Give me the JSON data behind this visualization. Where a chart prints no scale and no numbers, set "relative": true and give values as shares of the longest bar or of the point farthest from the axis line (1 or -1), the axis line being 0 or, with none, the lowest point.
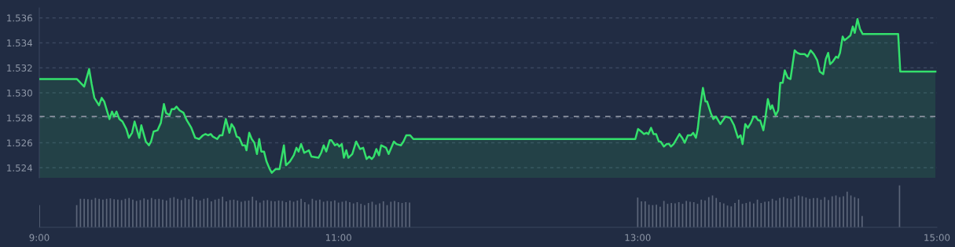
{
  "chart_data": [
    {
      "type": "area",
      "xlim": [
        9,
        15
      ],
      "ylim": [
        1.5232,
        1.5368
      ],
      "yticks": [
        1.524,
        1.526,
        1.528,
        {
          "value": 1.53,
          "label": "1.530"
        },
        1.532,
        1.534,
        1.536
      ],
      "grid": "y",
      "tick_labels": "y",
      "ref_lines": [
        {
          "axis": "y",
          "value": 1.5281,
          "color": "#8a909e",
          "line_style": "dashed"
        }
      ],
      "series": [
        {
          "color": "#34e06c",
          "x": [
            9.0,
            9.252,
            9.3,
            9.333,
            9.35,
            9.368,
            9.399,
            9.417,
            9.434,
            9.469,
            9.486,
            9.5,
            9.516,
            9.535,
            9.556,
            9.582,
            9.599,
            9.62,
            9.637,
            9.668,
            9.682,
            9.712,
            9.733,
            9.747,
            9.764,
            9.79,
            9.8125,
            9.833,
            9.847,
            9.871,
            9.885,
            9.903,
            9.917,
            9.9375,
            9.964,
            9.986,
            10.016,
            10.042,
            10.068,
            10.094,
            10.111,
            10.128,
            10.146,
            10.16,
            10.189,
            10.207,
            10.224,
            10.247,
            10.271,
            10.285,
            10.302,
            10.3194,
            10.337,
            10.358,
            10.375,
            10.385,
            10.403,
            10.42,
            10.4375,
            10.455,
            10.47,
            10.484,
            10.502,
            10.519,
            10.54,
            10.554,
            10.58,
            10.606,
            10.635,
            10.649,
            10.675,
            10.701,
            10.7188,
            10.733,
            10.75,
            10.771,
            10.802,
            10.819,
            10.866,
            10.884,
            10.901,
            10.918,
            10.941,
            10.953,
            10.976,
            10.993,
            11.005,
            11.022,
            11.036,
            11.052,
            11.066,
            11.092,
            11.118,
            11.144,
            11.165,
            11.1875,
            11.205,
            11.222,
            11.236,
            11.253,
            11.271,
            11.285,
            11.318,
            11.335,
            11.37,
            11.387,
            11.417,
            11.434,
            11.453,
            11.479,
            11.5,
            12.984,
            13.002,
            13.024,
            13.042,
            13.059,
            13.071,
            13.089,
            13.106,
            13.123,
            13.141,
            13.153,
            13.175,
            13.193,
            13.21,
            13.222,
            13.24,
            13.279,
            13.297,
            13.314,
            13.335,
            13.356,
            13.371,
            13.389,
            13.401,
            13.418,
            13.436,
            13.453,
            13.464,
            13.488,
            13.505,
            13.523,
            13.552,
            13.587,
            13.618,
            13.644,
            13.67,
            13.688,
            13.701,
            13.719,
            13.736,
            13.757,
            13.774,
            13.788,
            13.806,
            13.818,
            13.84,
            13.852,
            13.87,
            13.887,
            13.899,
            13.922,
            13.939,
            13.953,
            13.969,
            13.983,
            14.003,
            14.021,
            14.049,
            14.066,
            14.087,
            14.116,
            14.135,
            14.156,
            14.177,
            14.2,
            14.217,
            14.24,
            14.257,
            14.273,
            14.286,
            14.304,
            14.326,
            14.339,
            14.352,
            14.37,
            14.382,
            14.403,
            14.422,
            14.4375,
            14.451,
            14.469,
            14.486,
            14.504,
            14.741,
            14.755,
            14.99
          ],
          "values": [
            1.5311,
            1.5311,
            1.5305,
            1.5319,
            1.5307,
            1.5296,
            1.529,
            1.5296,
            1.5293,
            1.5279,
            1.5285,
            1.5281,
            1.5285,
            1.5279,
            1.5277,
            1.5271,
            1.5264,
            1.5268,
            1.5277,
            1.5264,
            1.5274,
            1.5261,
            1.5258,
            1.5261,
            1.5269,
            1.527,
            1.5276,
            1.5291,
            1.5284,
            1.5282,
            1.5287,
            1.5287,
            1.5289,
            1.5286,
            1.5284,
            1.5278,
            1.5272,
            1.5264,
            1.5263,
            1.5266,
            1.5267,
            1.5266,
            1.5267,
            1.5265,
            1.5263,
            1.5266,
            1.5266,
            1.5279,
            1.5268,
            1.5275,
            1.5272,
            1.5265,
            1.5264,
            1.5258,
            1.5258,
            1.5254,
            1.5268,
            1.5263,
            1.526,
            1.5251,
            1.5263,
            1.5253,
            1.5253,
            1.5245,
            1.5239,
            1.5236,
            1.5239,
            1.5239,
            1.5258,
            1.5242,
            1.5245,
            1.525,
            1.5256,
            1.5253,
            1.5259,
            1.5252,
            1.5254,
            1.5249,
            1.5248,
            1.5252,
            1.5258,
            1.5253,
            1.5262,
            1.5262,
            1.5258,
            1.5259,
            1.5257,
            1.5259,
            1.5248,
            1.5254,
            1.5248,
            1.5251,
            1.5261,
            1.5255,
            1.5256,
            1.5247,
            1.5249,
            1.5247,
            1.5249,
            1.5255,
            1.525,
            1.5258,
            1.5256,
            1.5251,
            1.5261,
            1.5259,
            1.5258,
            1.5261,
            1.5266,
            1.5266,
            1.5263,
            1.5263,
            1.5271,
            1.5269,
            1.5267,
            1.5268,
            1.5267,
            1.5272,
            1.5267,
            1.5267,
            1.5261,
            1.5261,
            1.5257,
            1.5259,
            1.5259,
            1.5257,
            1.5259,
            1.5267,
            1.5264,
            1.526,
            1.5266,
            1.5266,
            1.5268,
            1.5264,
            1.5271,
            1.5289,
            1.5304,
            1.5293,
            1.5293,
            1.5284,
            1.5279,
            1.5281,
            1.5275,
            1.5281,
            1.528,
            1.5274,
            1.5264,
            1.5266,
            1.5259,
            1.5275,
            1.5272,
            1.5276,
            1.5281,
            1.5281,
            1.5278,
            1.5278,
            1.527,
            1.5279,
            1.5295,
            1.5287,
            1.529,
            1.5282,
            1.5286,
            1.5308,
            1.5308,
            1.5318,
            1.5312,
            1.5311,
            1.5334,
            1.5332,
            1.5331,
            1.5331,
            1.5329,
            1.5334,
            1.5331,
            1.5326,
            1.5317,
            1.5315,
            1.5327,
            1.5332,
            1.5323,
            1.5325,
            1.5329,
            1.5328,
            1.5332,
            1.5345,
            1.5342,
            1.5344,
            1.5346,
            1.5353,
            1.5348,
            1.5359,
            1.5351,
            1.5347,
            1.5347,
            1.5317,
            1.5317
          ]
        }
      ]
    },
    {
      "type": "bar",
      "relative": true,
      "xlim": [
        9,
        15
      ],
      "tick_labels": "x",
      "color": "#5b6579",
      "xticks": [
        {
          "value": 9,
          "label": "9:00"
        },
        {
          "value": 11,
          "label": "11:00"
        },
        {
          "value": 13,
          "label": "13:00"
        },
        {
          "value": 15,
          "label": "15:00"
        }
      ],
      "x": [
        9.0,
        9.25,
        9.275,
        9.3,
        9.325,
        9.35,
        9.375,
        9.4,
        9.425,
        9.45,
        9.475,
        9.5,
        9.525,
        9.55,
        9.575,
        9.6,
        9.625,
        9.65,
        9.675,
        9.7,
        9.725,
        9.75,
        9.775,
        9.8,
        9.825,
        9.85,
        9.875,
        9.9,
        9.925,
        9.95,
        9.975,
        10.0,
        10.025,
        10.05,
        10.075,
        10.1,
        10.125,
        10.15,
        10.175,
        10.2,
        10.225,
        10.25,
        10.275,
        10.3,
        10.325,
        10.35,
        10.375,
        10.4,
        10.425,
        10.45,
        10.475,
        10.5,
        10.525,
        10.55,
        10.575,
        10.6,
        10.625,
        10.65,
        10.675,
        10.7,
        10.725,
        10.75,
        10.775,
        10.8,
        10.825,
        10.85,
        10.875,
        10.9,
        10.925,
        10.95,
        10.975,
        11.0,
        11.025,
        11.05,
        11.075,
        11.1,
        11.125,
        11.15,
        11.175,
        11.2,
        11.225,
        11.25,
        11.275,
        11.3,
        11.325,
        11.35,
        11.375,
        11.4,
        11.425,
        11.45,
        11.475,
        13.0,
        13.025,
        13.05,
        13.075,
        13.1,
        13.125,
        13.15,
        13.175,
        13.2,
        13.225,
        13.25,
        13.275,
        13.3,
        13.325,
        13.35,
        13.375,
        13.4,
        13.425,
        13.45,
        13.475,
        13.5,
        13.525,
        13.55,
        13.575,
        13.6,
        13.625,
        13.65,
        13.675,
        13.7,
        13.725,
        13.75,
        13.775,
        13.8,
        13.825,
        13.85,
        13.875,
        13.9,
        13.925,
        13.95,
        13.975,
        14.0,
        14.025,
        14.05,
        14.075,
        14.1,
        14.125,
        14.15,
        14.175,
        14.2,
        14.225,
        14.25,
        14.275,
        14.3,
        14.325,
        14.35,
        14.375,
        14.4,
        14.425,
        14.45,
        14.475,
        14.5,
        14.75
      ],
      "values": [
        0.53,
        0.53,
        0.68,
        0.68,
        0.67,
        0.66,
        0.7,
        0.68,
        0.66,
        0.68,
        0.69,
        0.67,
        0.66,
        0.65,
        0.68,
        0.7,
        0.66,
        0.63,
        0.65,
        0.69,
        0.66,
        0.7,
        0.67,
        0.68,
        0.66,
        0.64,
        0.7,
        0.72,
        0.68,
        0.65,
        0.7,
        0.67,
        0.73,
        0.66,
        0.64,
        0.68,
        0.7,
        0.62,
        0.66,
        0.68,
        0.73,
        0.62,
        0.65,
        0.66,
        0.64,
        0.61,
        0.63,
        0.64,
        0.73,
        0.64,
        0.59,
        0.64,
        0.65,
        0.63,
        0.62,
        0.64,
        0.63,
        0.6,
        0.64,
        0.61,
        0.64,
        0.68,
        0.6,
        0.55,
        0.68,
        0.64,
        0.66,
        0.61,
        0.63,
        0.62,
        0.64,
        0.59,
        0.61,
        0.63,
        0.6,
        0.57,
        0.6,
        0.56,
        0.53,
        0.58,
        0.61,
        0.54,
        0.57,
        0.62,
        0.53,
        0.61,
        0.63,
        0.6,
        0.58,
        0.6,
        0.59,
        0.71,
        0.62,
        0.62,
        0.54,
        0.53,
        0.54,
        0.49,
        0.63,
        0.56,
        0.58,
        0.57,
        0.6,
        0.56,
        0.63,
        0.61,
        0.6,
        0.56,
        0.66,
        0.64,
        0.72,
        0.76,
        0.7,
        0.6,
        0.57,
        0.52,
        0.5,
        0.58,
        0.66,
        0.56,
        0.58,
        0.61,
        0.57,
        0.66,
        0.58,
        0.61,
        0.62,
        0.68,
        0.64,
        0.7,
        0.72,
        0.69,
        0.68,
        0.73,
        0.76,
        0.74,
        0.71,
        0.68,
        0.7,
        0.7,
        0.66,
        0.72,
        0.65,
        0.74,
        0.76,
        0.72,
        0.74,
        0.85,
        0.76,
        0.72,
        0.69,
        0.27,
        1.0
      ]
    }
  ]
}
